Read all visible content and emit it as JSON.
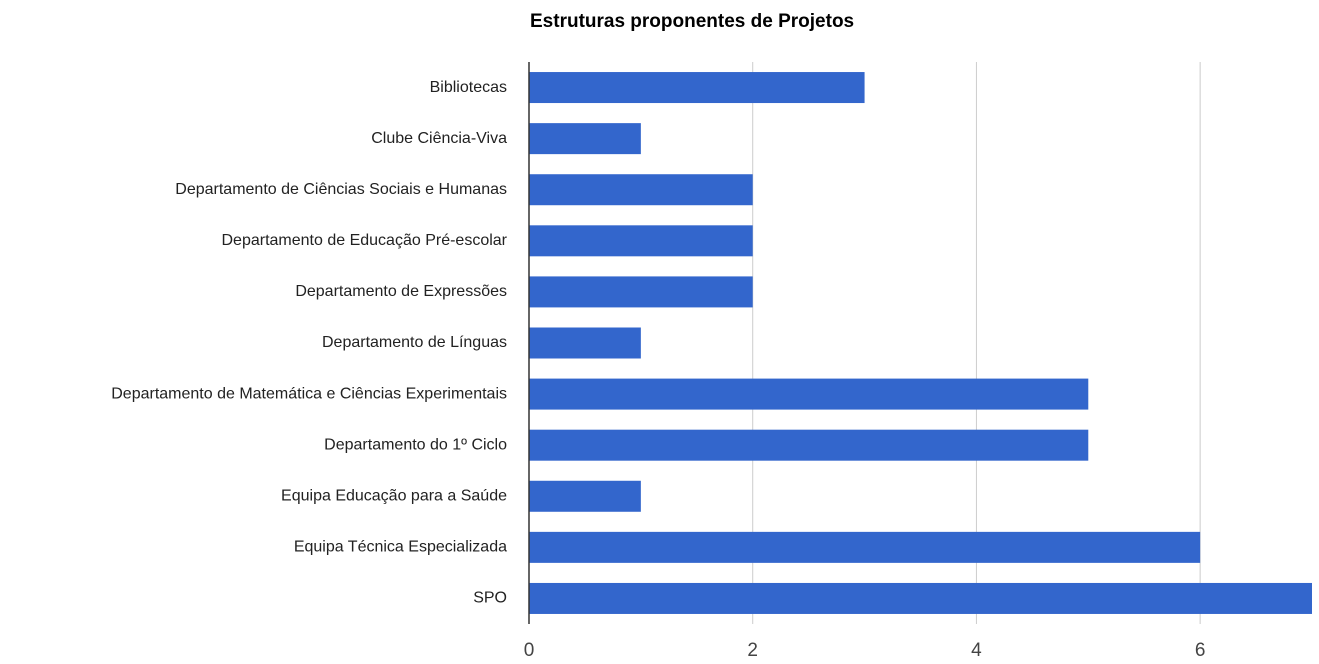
{
  "chart_data": {
    "type": "hbar",
    "title": "Estruturas proponentes de Projetos",
    "categories": [
      "Bibliotecas",
      "Clube Ciência-Viva",
      "Departamento de Ciências Sociais e Humanas",
      "Departamento de Educação Pré-escolar",
      "Departamento de Expressões",
      "Departamento de Línguas",
      "Departamento de Matemática e Ciências Experimentais",
      "Departamento do 1º Ciclo",
      "Equipa Educação para a Saúde",
      "Equipa Técnica Especializada",
      "SPO"
    ],
    "values": [
      3,
      1,
      2,
      2,
      2,
      1,
      5,
      5,
      1,
      6,
      7
    ],
    "color": "#3366cc",
    "xlim": [
      0,
      7
    ],
    "xticks": [
      0,
      2,
      4,
      6
    ],
    "grid": true
  }
}
